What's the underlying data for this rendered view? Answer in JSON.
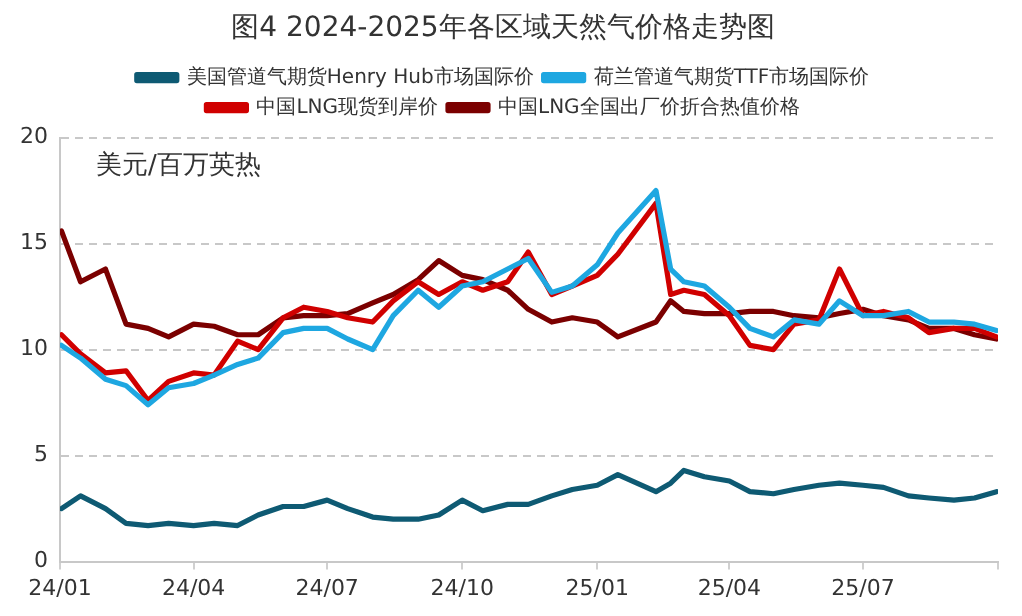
{
  "chart_data": {
    "type": "line",
    "title": "图4 2024-2025年各区域天然气价格走势图",
    "ylabel": "美元/百万英热",
    "x": [
      "2024-01-02",
      "2024-01-15",
      "2024-02-01",
      "2024-02-15",
      "2024-03-01",
      "2024-03-15",
      "2024-04-01",
      "2024-04-15",
      "2024-05-01",
      "2024-05-15",
      "2024-06-01",
      "2024-06-15",
      "2024-07-01",
      "2024-07-15",
      "2024-08-01",
      "2024-08-15",
      "2024-09-01",
      "2024-09-15",
      "2024-10-01",
      "2024-10-15",
      "2024-11-01",
      "2024-11-15",
      "2024-12-01",
      "2024-12-15",
      "2025-01-01",
      "2025-01-15",
      "2025-02-10",
      "2025-02-20",
      "2025-03-01",
      "2025-03-15",
      "2025-04-01",
      "2025-04-15",
      "2025-05-01",
      "2025-05-15",
      "2025-06-01",
      "2025-06-15",
      "2025-07-01",
      "2025-07-15",
      "2025-08-01",
      "2025-08-15",
      "2025-09-01",
      "2025-09-15",
      "2025-09-30"
    ],
    "series": [
      {
        "name": "美国管道气期货Henry Hub市场国际价",
        "color": "#0e5a73",
        "values": [
          2.5,
          3.1,
          2.5,
          1.8,
          1.7,
          1.8,
          1.7,
          1.8,
          1.7,
          2.2,
          2.6,
          2.6,
          2.9,
          2.5,
          2.1,
          2.0,
          2.0,
          2.2,
          2.9,
          2.4,
          2.7,
          2.7,
          3.1,
          3.4,
          3.6,
          4.1,
          3.3,
          3.7,
          4.3,
          4.0,
          3.8,
          3.3,
          3.2,
          3.4,
          3.6,
          3.7,
          3.6,
          3.5,
          3.1,
          3.0,
          2.9,
          3.0,
          3.3
        ]
      },
      {
        "name": "荷兰管道气期货TTF市场国际价",
        "color": "#1ea7e1",
        "values": [
          10.2,
          9.6,
          8.6,
          8.3,
          7.4,
          8.2,
          8.4,
          8.8,
          9.3,
          9.6,
          10.8,
          11.0,
          11.0,
          10.5,
          10.0,
          11.6,
          12.8,
          12.0,
          13.0,
          13.2,
          13.8,
          14.3,
          12.7,
          13.0,
          14.0,
          15.5,
          17.5,
          13.8,
          13.2,
          13.0,
          12.0,
          11.0,
          10.6,
          11.4,
          11.2,
          12.3,
          11.6,
          11.6,
          11.8,
          11.3,
          11.3,
          11.2,
          10.9
        ]
      },
      {
        "name": "中国LNG现货到岸价",
        "color": "#d00000",
        "values": [
          10.7,
          9.8,
          8.9,
          9.0,
          7.6,
          8.5,
          8.9,
          8.8,
          10.4,
          10.0,
          11.5,
          12.0,
          11.8,
          11.5,
          11.3,
          12.3,
          13.2,
          12.6,
          13.2,
          12.8,
          13.2,
          14.6,
          12.6,
          13.0,
          13.5,
          14.5,
          16.9,
          12.6,
          12.8,
          12.6,
          11.6,
          10.2,
          10.0,
          11.2,
          11.4,
          13.8,
          11.6,
          11.8,
          11.5,
          10.8,
          11.0,
          11.0,
          10.6
        ]
      },
      {
        "name": "中国LNG全国出厂价折合热值价格",
        "color": "#7b0000",
        "values": [
          15.6,
          13.2,
          13.8,
          11.2,
          11.0,
          10.6,
          11.2,
          11.1,
          10.7,
          10.7,
          11.5,
          11.6,
          11.6,
          11.7,
          12.2,
          12.6,
          13.3,
          14.2,
          13.5,
          13.3,
          12.8,
          11.9,
          11.3,
          11.5,
          11.3,
          10.6,
          11.3,
          12.3,
          11.8,
          11.7,
          11.7,
          11.8,
          11.8,
          11.6,
          11.5,
          11.7,
          11.9,
          11.6,
          11.4,
          11.0,
          11.0,
          10.7,
          10.5
        ]
      }
    ],
    "xlim": [
      "2024-01-01",
      "2025-10-01"
    ],
    "xticks": [
      {
        "value": "2024-01-01",
        "label": "24/01"
      },
      {
        "value": "2024-04-01",
        "label": "24/04"
      },
      {
        "value": "2024-07-01",
        "label": "24/07"
      },
      {
        "value": "2024-10-01",
        "label": "24/10"
      },
      {
        "value": "2025-01-01",
        "label": "25/01"
      },
      {
        "value": "2025-04-01",
        "label": "25/04"
      },
      {
        "value": "2025-07-01",
        "label": "25/07"
      },
      {
        "value": "2025-10-01",
        "label": null
      }
    ],
    "ylim": [
      0,
      20
    ],
    "yticks": [
      0,
      5,
      10,
      15,
      20
    ],
    "grid": "y",
    "legend": "top",
    "marker": "none",
    "line_style": "solid"
  }
}
